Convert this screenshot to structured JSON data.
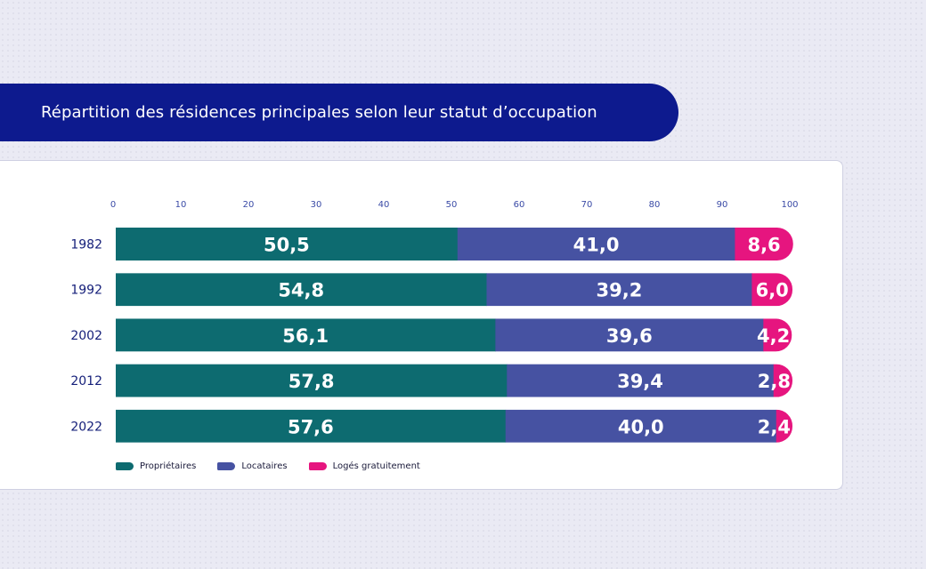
{
  "title": "Répartition des résidences principales selon leur statut d’occupation",
  "colors": {
    "proprietaires": "#0d6b70",
    "locataires": "#4652a2",
    "loges": "#e6157f",
    "title_bg": "#0d1a8e",
    "year_text": "#16207a",
    "tick_text": "#3a4aa6"
  },
  "chart_data": {
    "type": "bar",
    "orientation": "horizontal",
    "stacked": true,
    "categories": [
      "1982",
      "1992",
      "2002",
      "2012",
      "2022"
    ],
    "series": [
      {
        "name": "Propriétaires",
        "values": [
          50.5,
          54.8,
          56.1,
          57.8,
          57.6
        ],
        "labels": [
          "50,5",
          "54,8",
          "56,1",
          "57,8",
          "57,6"
        ]
      },
      {
        "name": "Locataires",
        "values": [
          41.0,
          39.2,
          39.6,
          39.4,
          40.0
        ],
        "labels": [
          "41,0",
          "39,2",
          "39,6",
          "39,4",
          "40,0"
        ]
      },
      {
        "name": "Logés gratuitement",
        "values": [
          8.6,
          6.0,
          4.2,
          2.8,
          2.4
        ],
        "labels": [
          "8,6",
          "6,0",
          "4,2",
          "2,8",
          "2,4"
        ]
      }
    ],
    "xlim": [
      0,
      100
    ],
    "xticks": [
      "0",
      "10",
      "20",
      "30",
      "40",
      "50",
      "60",
      "70",
      "80",
      "90",
      "100"
    ],
    "legend_position": "bottom-left",
    "grid": false
  }
}
